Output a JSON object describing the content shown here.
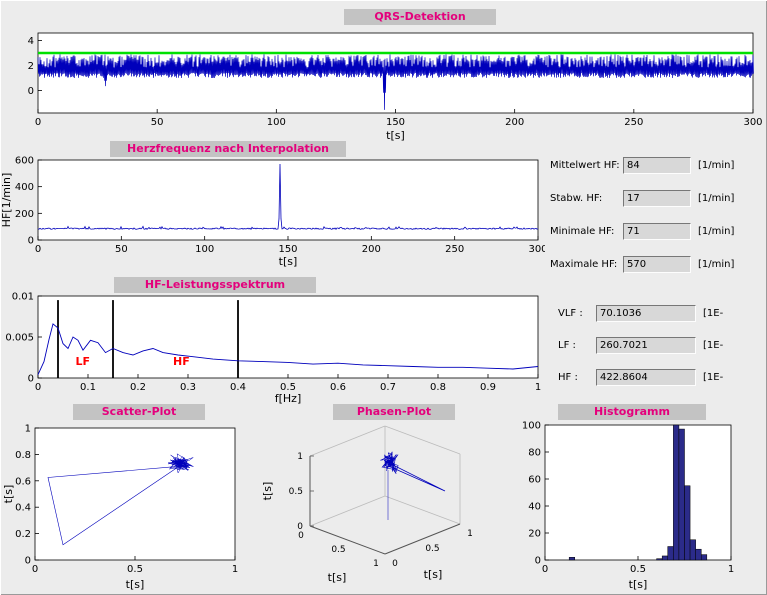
{
  "window": {
    "bg": "#ececec",
    "title_strip_bg": "#c3c3c3",
    "title_color": "#e4007c",
    "plot_line_color": "#0000bb"
  },
  "titles": {
    "qrs": "QRS-Detektion",
    "hr": "Herzfrequenz nach Interpolation",
    "spectrum": "HF-Leistungsspektrum",
    "scatter": "Scatter-Plot",
    "phase": "Phasen-Plot",
    "histogram": "Histogramm"
  },
  "stats": {
    "rows": [
      {
        "label": "Mittelwert HF:",
        "value": "84",
        "unit": "[1/min]"
      },
      {
        "label": "Stabw. HF:",
        "value": "17",
        "unit": "[1/min]"
      },
      {
        "label": "Minimale HF:",
        "value": "71",
        "unit": "[1/min]"
      },
      {
        "label": "Maximale HF:",
        "value": "570",
        "unit": "[1/min]"
      }
    ],
    "bands": [
      {
        "label": "VLF :",
        "value": "70.1036",
        "unit": "[1E-"
      },
      {
        "label": "LF :",
        "value": "260.7021",
        "unit": "[1E-"
      },
      {
        "label": "HF :",
        "value": "422.8604",
        "unit": "[1E-"
      }
    ]
  },
  "chart_data": [
    {
      "id": "qrs",
      "type": "line",
      "title": "QRS-Detektion",
      "xlabel": "t[s]",
      "xlim": [
        0,
        300
      ],
      "xticks": [
        0,
        50,
        100,
        150,
        200,
        250,
        300
      ],
      "ylim": [
        -1.8,
        4.6
      ],
      "yticks": [
        0,
        2,
        4
      ],
      "line_color": "#0000bb",
      "threshold_line": {
        "y": 3,
        "color": "#00e100"
      },
      "ecg": {
        "description": "dense ECG trace, QRS spikes between ~1.0 and ~2.9",
        "band_top_min": 2.3,
        "band_top_max": 2.9,
        "band_bottom_min": 1.0,
        "band_bottom_max": 1.4,
        "artifacts": [
          {
            "t": 28,
            "y": 0.35
          },
          {
            "t": 145,
            "y": -1.55
          }
        ]
      }
    },
    {
      "id": "hr",
      "type": "line",
      "title": "Herzfrequenz nach Interpolation",
      "xlabel": "t[s]",
      "ylabel": "HF[1/min]",
      "xlim": [
        0,
        300
      ],
      "xticks": [
        0,
        50,
        100,
        150,
        200,
        250,
        300
      ],
      "ylim": [
        0,
        600
      ],
      "yticks": [
        0,
        200,
        400,
        600
      ],
      "line_color": "#0000bb",
      "series": {
        "baseline": 85,
        "noise": 10,
        "spike": {
          "t": 145,
          "value": 570
        }
      }
    },
    {
      "id": "spectrum",
      "type": "line",
      "title": "HF-Leistungsspektrum",
      "xlabel": "f[Hz]",
      "xlim": [
        0,
        1
      ],
      "xticks": [
        0,
        0.1,
        0.2,
        0.3,
        0.4,
        0.5,
        0.6,
        0.7,
        0.8,
        0.9,
        1
      ],
      "xtick_labels": [
        "0",
        "0.1",
        "0.2",
        "0.3",
        "0.4",
        "0.5",
        "0.6",
        "0.7",
        "0.8",
        "0.9",
        "1"
      ],
      "ylim": [
        0,
        0.01
      ],
      "yticks": [
        0,
        0.005,
        0.01
      ],
      "ytick_labels": [
        "0",
        "0.005",
        "0.01"
      ],
      "line_color": "#0000bb",
      "band_lines": [
        0.04,
        0.15,
        0.4
      ],
      "annotations": [
        {
          "text": "LF",
          "x": 0.075,
          "y": 0.0016,
          "color": "#ff0000"
        },
        {
          "text": "HF",
          "x": 0.27,
          "y": 0.0016,
          "color": "#ff0000"
        }
      ],
      "points": [
        [
          0,
          0.0004
        ],
        [
          0.012,
          0.002
        ],
        [
          0.022,
          0.0047
        ],
        [
          0.03,
          0.0066
        ],
        [
          0.04,
          0.0061
        ],
        [
          0.05,
          0.0042
        ],
        [
          0.06,
          0.0036
        ],
        [
          0.07,
          0.005
        ],
        [
          0.08,
          0.0046
        ],
        [
          0.09,
          0.0034
        ],
        [
          0.105,
          0.0046
        ],
        [
          0.12,
          0.0043
        ],
        [
          0.135,
          0.0031
        ],
        [
          0.15,
          0.0036
        ],
        [
          0.17,
          0.0031
        ],
        [
          0.19,
          0.0028
        ],
        [
          0.21,
          0.0033
        ],
        [
          0.23,
          0.0036
        ],
        [
          0.25,
          0.0031
        ],
        [
          0.28,
          0.0028
        ],
        [
          0.31,
          0.0026
        ],
        [
          0.35,
          0.0023
        ],
        [
          0.4,
          0.0021
        ],
        [
          0.45,
          0.002
        ],
        [
          0.5,
          0.0019
        ],
        [
          0.55,
          0.0017
        ],
        [
          0.6,
          0.0018
        ],
        [
          0.65,
          0.0016
        ],
        [
          0.7,
          0.0015
        ],
        [
          0.75,
          0.0014
        ],
        [
          0.8,
          0.0013
        ],
        [
          0.85,
          0.0013
        ],
        [
          0.9,
          0.0012
        ],
        [
          0.95,
          0.0011
        ],
        [
          1,
          0.0014
        ]
      ]
    },
    {
      "id": "scatter",
      "type": "scatter",
      "title": "Scatter-Plot",
      "xlabel": "t[s]",
      "ylabel": "t[s]",
      "xlim": [
        0,
        1
      ],
      "xticks": [
        0,
        0.5,
        1
      ],
      "ylim": [
        0,
        1
      ],
      "yticks": [
        0,
        0.2,
        0.4,
        0.6,
        0.8,
        1
      ],
      "line_color": "#0000bb",
      "cluster": {
        "cx": 0.73,
        "cy": 0.735,
        "sigma": 0.03,
        "n": 140
      },
      "outline": [
        [
          0.72,
          0.71
        ],
        [
          0.065,
          0.625
        ],
        [
          0.14,
          0.115
        ],
        [
          0.73,
          0.72
        ]
      ]
    },
    {
      "id": "phase",
      "type": "line3d",
      "title": "Phasen-Plot",
      "xlabel": "t[s]",
      "ylabel": "t[s]",
      "zlabel": "t[s]",
      "axis_ticks": [
        "0",
        "0.5",
        "1"
      ],
      "line_color": "#0000bb",
      "cluster": {
        "x": 0.72,
        "y": 0.72,
        "z": 0.75
      }
    },
    {
      "id": "histogram",
      "type": "bar",
      "title": "Histogramm",
      "xlabel": "t[s]",
      "xlim": [
        0,
        1
      ],
      "xticks": [
        0,
        0.5,
        1
      ],
      "ylim": [
        0,
        100
      ],
      "yticks": [
        0,
        20,
        40,
        60,
        80,
        100
      ],
      "bar_color": "#2b2b8a",
      "bar_edge": "#000000",
      "bin_width": 0.03,
      "bins": [
        {
          "x": 0.13,
          "count": 2
        },
        {
          "x": 0.6,
          "count": 1
        },
        {
          "x": 0.63,
          "count": 3
        },
        {
          "x": 0.66,
          "count": 10
        },
        {
          "x": 0.69,
          "count": 100
        },
        {
          "x": 0.72,
          "count": 97
        },
        {
          "x": 0.75,
          "count": 55
        },
        {
          "x": 0.78,
          "count": 15
        },
        {
          "x": 0.81,
          "count": 8
        },
        {
          "x": 0.84,
          "count": 4
        }
      ]
    }
  ]
}
